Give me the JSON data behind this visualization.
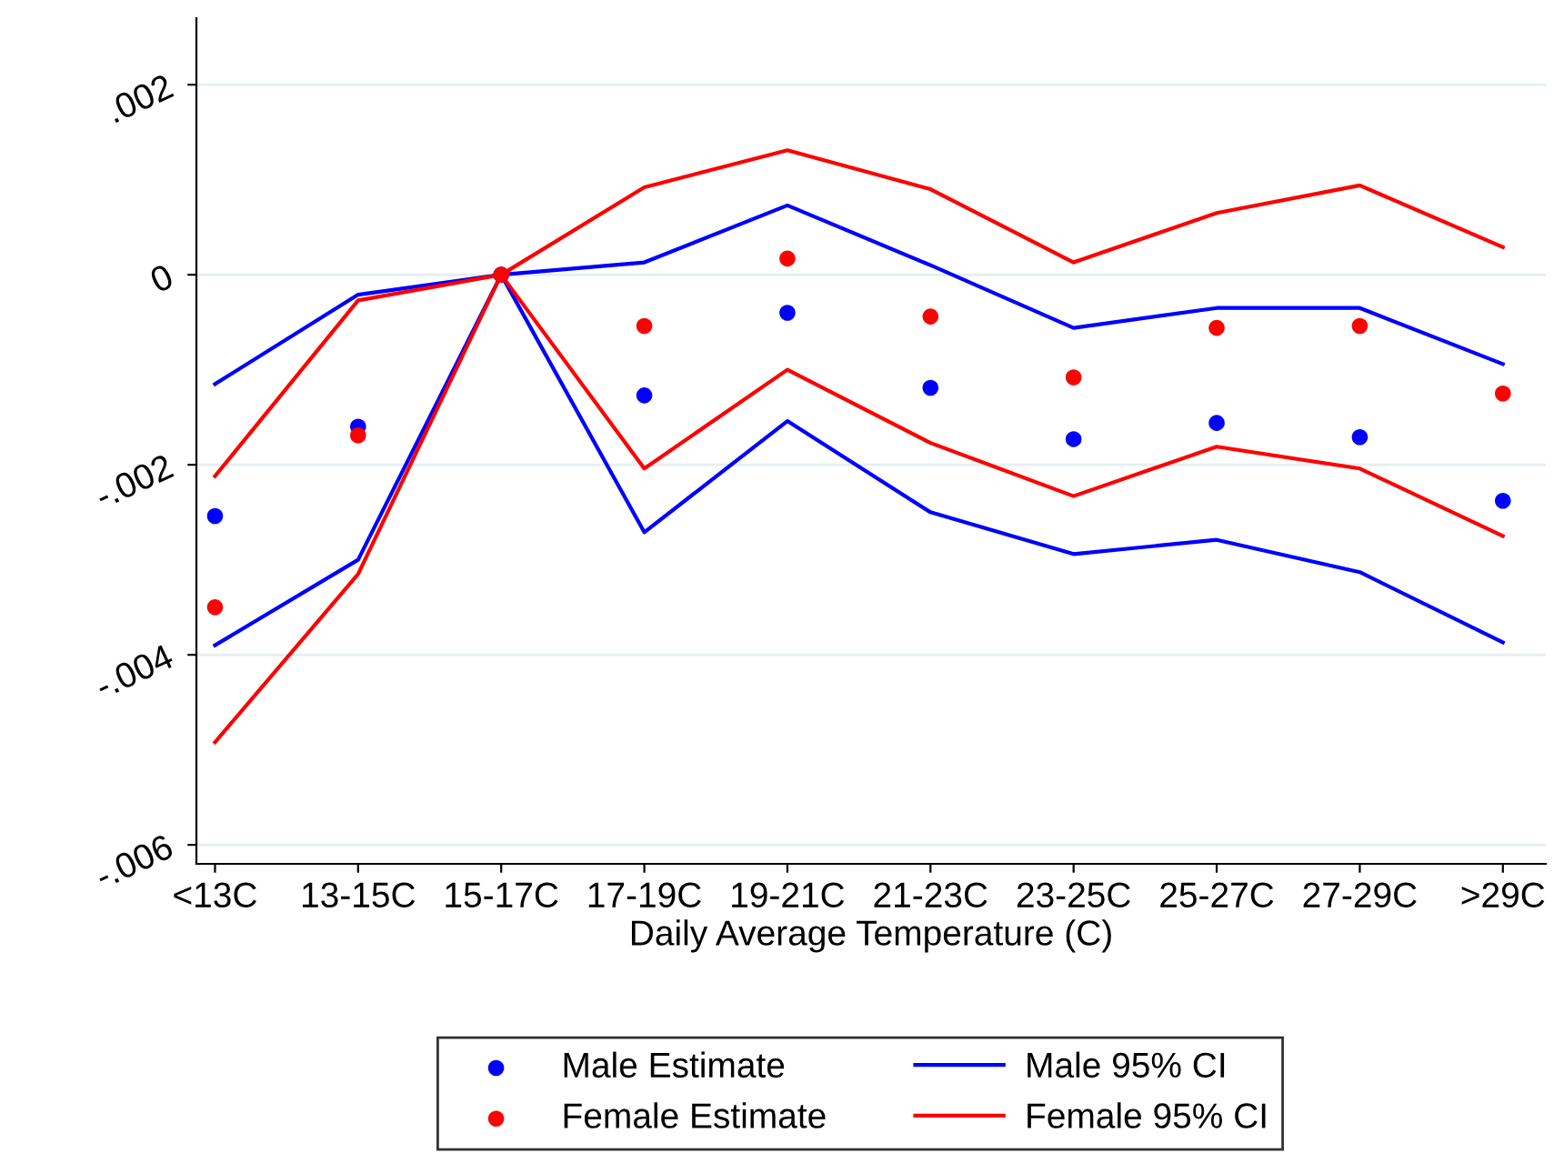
{
  "chart_data": {
    "type": "scatter",
    "xlabel": "Daily Average Temperature (C)",
    "categories": [
      "<13C",
      "13-15C",
      "15-17C",
      "17-19C",
      "19-21C",
      "21-23C",
      "23-25C",
      "25-27C",
      "27-29C",
      ">29C"
    ],
    "series": [
      {
        "name": "Male Estimate",
        "type": "scatter",
        "color": "#0000ff",
        "values": [
          -0.00254,
          -0.0016,
          0,
          -0.00127,
          -0.0004,
          -0.00119,
          -0.00173,
          -0.00156,
          -0.00171,
          -0.00238
        ]
      },
      {
        "name": "Female Estimate",
        "color": "#ff0000",
        "values": [
          -0.0035,
          -0.00169,
          0,
          -0.00054,
          0.00017,
          -0.00044,
          -0.00108,
          -0.00056,
          -0.00054,
          -0.00125
        ]
      },
      {
        "name": "Male 95% CI",
        "type": "line",
        "marker": "none",
        "color": "#0000ff",
        "values": [
          -0.00115,
          -0.00021,
          0,
          0.00013,
          0.00073,
          0.0001,
          -0.00056,
          -0.00035,
          -0.00035,
          -0.00094
        ]
      },
      {
        "name": "Female 95% CI",
        "type": "line",
        "marker": "none",
        "color": "#ff0000",
        "values": [
          -0.00212,
          -0.00027,
          0,
          0.00092,
          0.00131,
          0.0009,
          0.00013,
          0.00065,
          0.00094,
          0.00029
        ]
      },
      {
        "type": "line",
        "marker": "none",
        "color": "#0000ff",
        "values": [
          -0.0039,
          -0.003,
          0,
          -0.00271,
          -0.00154,
          -0.0025,
          -0.00294,
          -0.00279,
          -0.00313,
          -0.00387
        ]
      },
      {
        "type": "line",
        "marker": "none",
        "color": "#ff0000",
        "values": [
          -0.00492,
          -0.00315,
          0,
          -0.00204,
          -0.001,
          -0.00177,
          -0.00233,
          -0.00181,
          -0.00204,
          -0.00275
        ]
      }
    ],
    "ylim": [
      -0.0062,
      0.0027
    ],
    "yticks": [
      {
        "value": -0.006,
        "label": "-.006"
      },
      {
        "value": -0.004,
        "label": "-.004"
      },
      {
        "value": -0.002,
        "label": "-.002"
      },
      0,
      {
        "value": 0.002,
        "label": ".002"
      }
    ],
    "grid": "y",
    "marker": "circle",
    "legend": "bottom",
    "line_style": "solid"
  }
}
